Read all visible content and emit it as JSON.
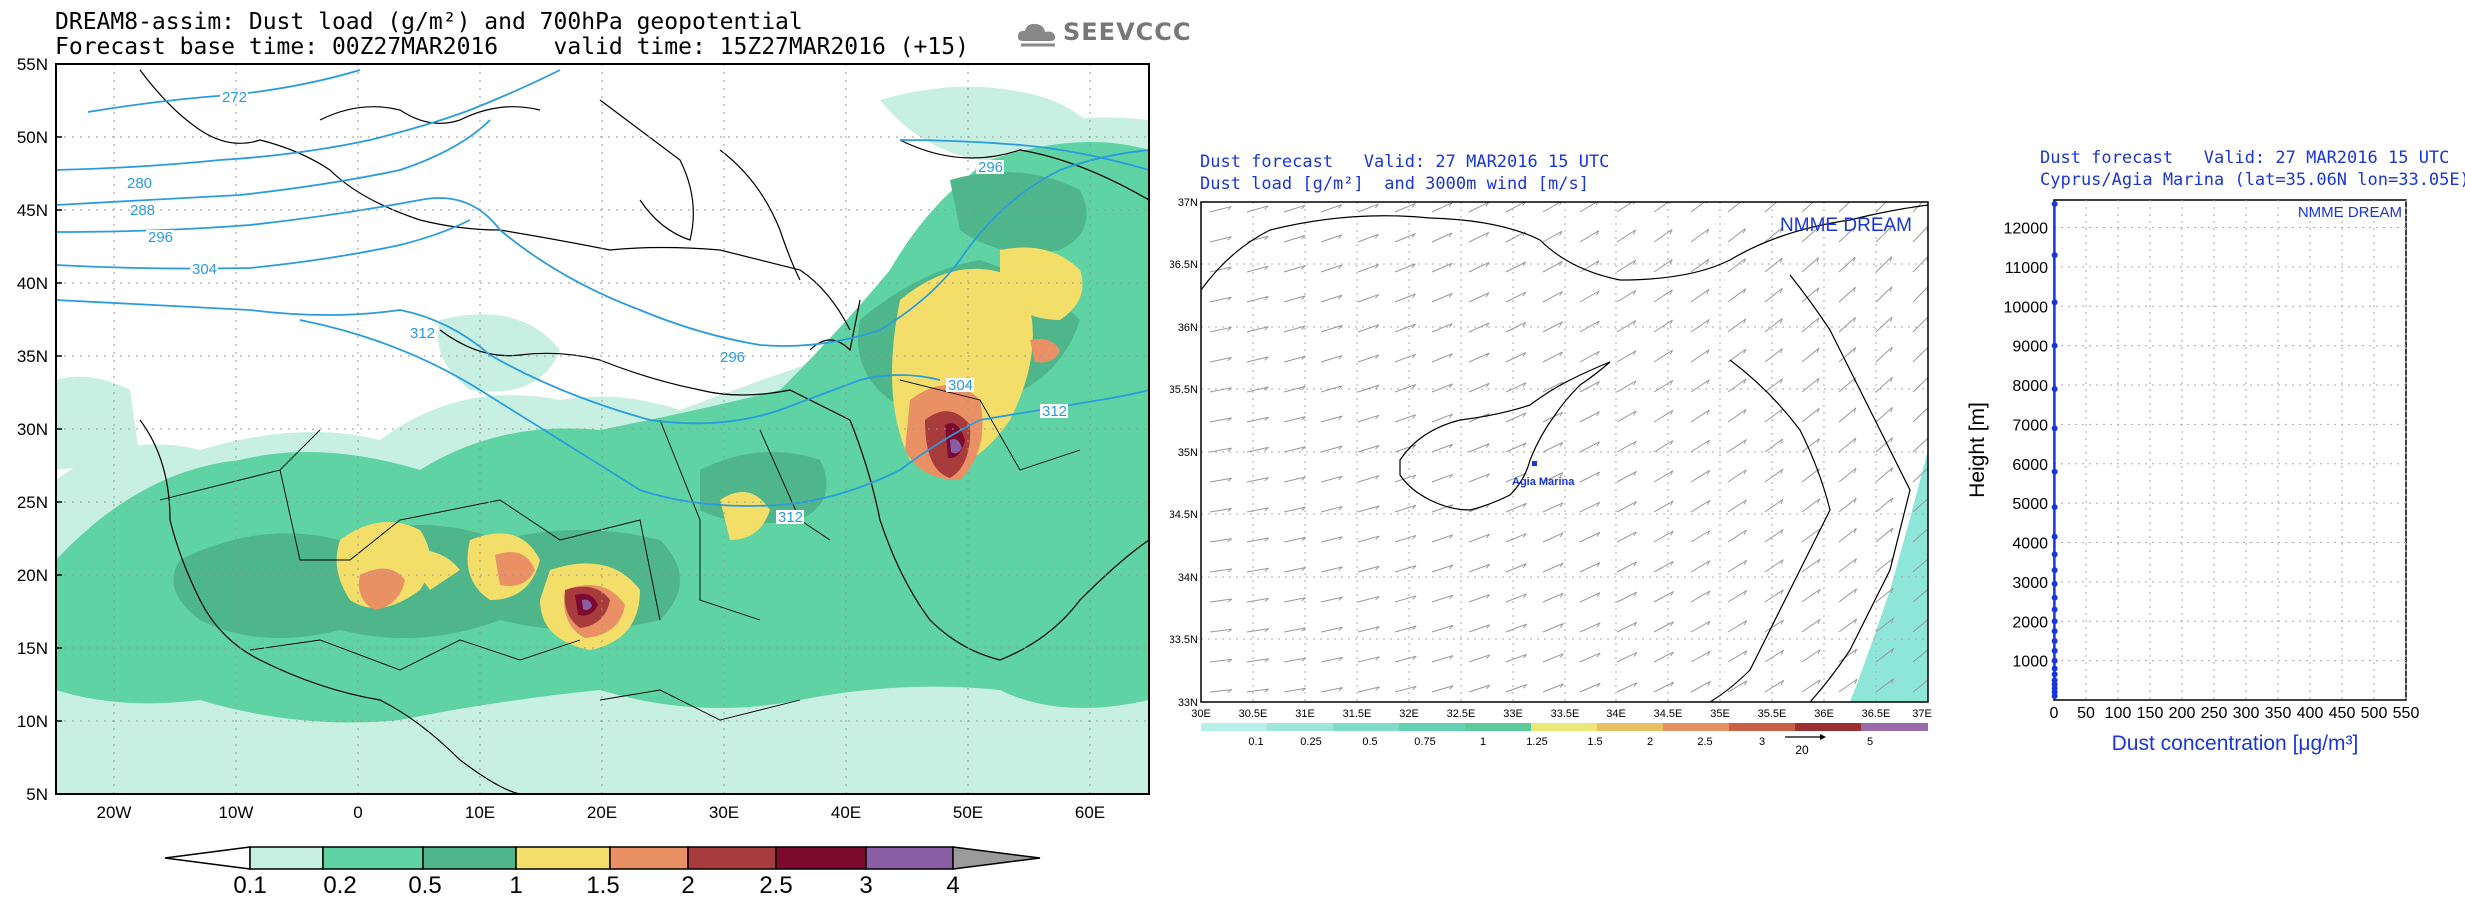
{
  "panel1": {
    "title_line1": "DREAM8-assim: Dust load (g/m²) and 700hPa geopotential",
    "title_line2": "Forecast base time: 00Z27MAR2016    valid time: 15Z27MAR2016 (+15)",
    "logo_text": "SEEVCCC",
    "lat_labels": [
      "55N",
      "50N",
      "45N",
      "40N",
      "35N",
      "30N",
      "25N",
      "20N",
      "15N",
      "10N",
      "5N"
    ],
    "lon_labels": [
      "20W",
      "10W",
      "0",
      "10E",
      "20E",
      "30E",
      "40E",
      "50E",
      "60E"
    ],
    "contour_labels": [
      "272",
      "280",
      "288",
      "296",
      "304",
      "312",
      "296",
      "304",
      "312",
      "312",
      "296"
    ],
    "colorbar_labels": [
      "0.1",
      "0.2",
      "0.5",
      "1",
      "1.5",
      "2",
      "2.5",
      "3",
      "4"
    ],
    "colorbar_colors": [
      "#ffffff",
      "#c7f0e3",
      "#5fd3a3",
      "#4fb58a",
      "#f3de6a",
      "#e99064",
      "#a83c3c",
      "#7d0a2e",
      "#8a5ea5",
      "#9b9b9b"
    ]
  },
  "panel2": {
    "title_line1": "Dust forecast   Valid: 27 MAR2016 15 UTC",
    "title_line2": "Dust load [g/m²]  and 3000m wind [m/s]",
    "brand": "NMME DREAM",
    "station": "Agia Marina",
    "lat_labels": [
      "37N",
      "36.5N",
      "36N",
      "35.5N",
      "35N",
      "34.5N",
      "34N",
      "33.5N",
      "33N"
    ],
    "lon_labels": [
      "30E",
      "30.5E",
      "31E",
      "31.5E",
      "32E",
      "32.5E",
      "33E",
      "33.5E",
      "34E",
      "34.5E",
      "35E",
      "35.5E",
      "36E",
      "36.5E",
      "37E"
    ],
    "colorbar_labels": [
      "0.1",
      "0.25",
      "0.5",
      "0.75",
      "1",
      "1.25",
      "1.5",
      "2",
      "2.5",
      "3",
      "5"
    ],
    "colorbar_colors": [
      "#b8efe6",
      "#9ee6da",
      "#7fdcc8",
      "#62d2b0",
      "#ece878",
      "#e8c060",
      "#e79060",
      "#c96046",
      "#9a3030",
      "#7a0a30",
      "#9b6aa8"
    ],
    "vector_ref": "20"
  },
  "panel3": {
    "title_line1": "Dust forecast   Valid: 27 MAR2016 15 UTC",
    "title_line2": "Cyprus/Agia Marina (lat=35.06N lon=33.05E)",
    "brand": "NMME DREAM",
    "ylabel": "Height [m]",
    "xlabel": "Dust concentration [μg/m³]",
    "chart_data": {
      "type": "line",
      "x_ticks": [
        0,
        50,
        100,
        150,
        200,
        250,
        300,
        350,
        400,
        450,
        500,
        550
      ],
      "y_ticks": [
        1000,
        2000,
        3000,
        4000,
        5000,
        6000,
        7000,
        8000,
        9000,
        10000,
        11000,
        12000
      ],
      "xlim": [
        0,
        550
      ],
      "ylim": [
        0,
        12700
      ],
      "series": [
        {
          "x": [
            1,
            1,
            1,
            1,
            1,
            1,
            1,
            1,
            1,
            1,
            1,
            1,
            1,
            1,
            1,
            1,
            1,
            1,
            1,
            1,
            1,
            1,
            1,
            1,
            1,
            1
          ],
          "y": [
            100,
            200,
            300,
            400,
            500,
            650,
            800,
            1000,
            1250,
            1500,
            1750,
            2000,
            2300,
            2600,
            2950,
            3300,
            3700,
            4150,
            4900,
            5800,
            6900,
            7900,
            9000,
            10100,
            11300,
            12600
          ]
        }
      ]
    }
  }
}
